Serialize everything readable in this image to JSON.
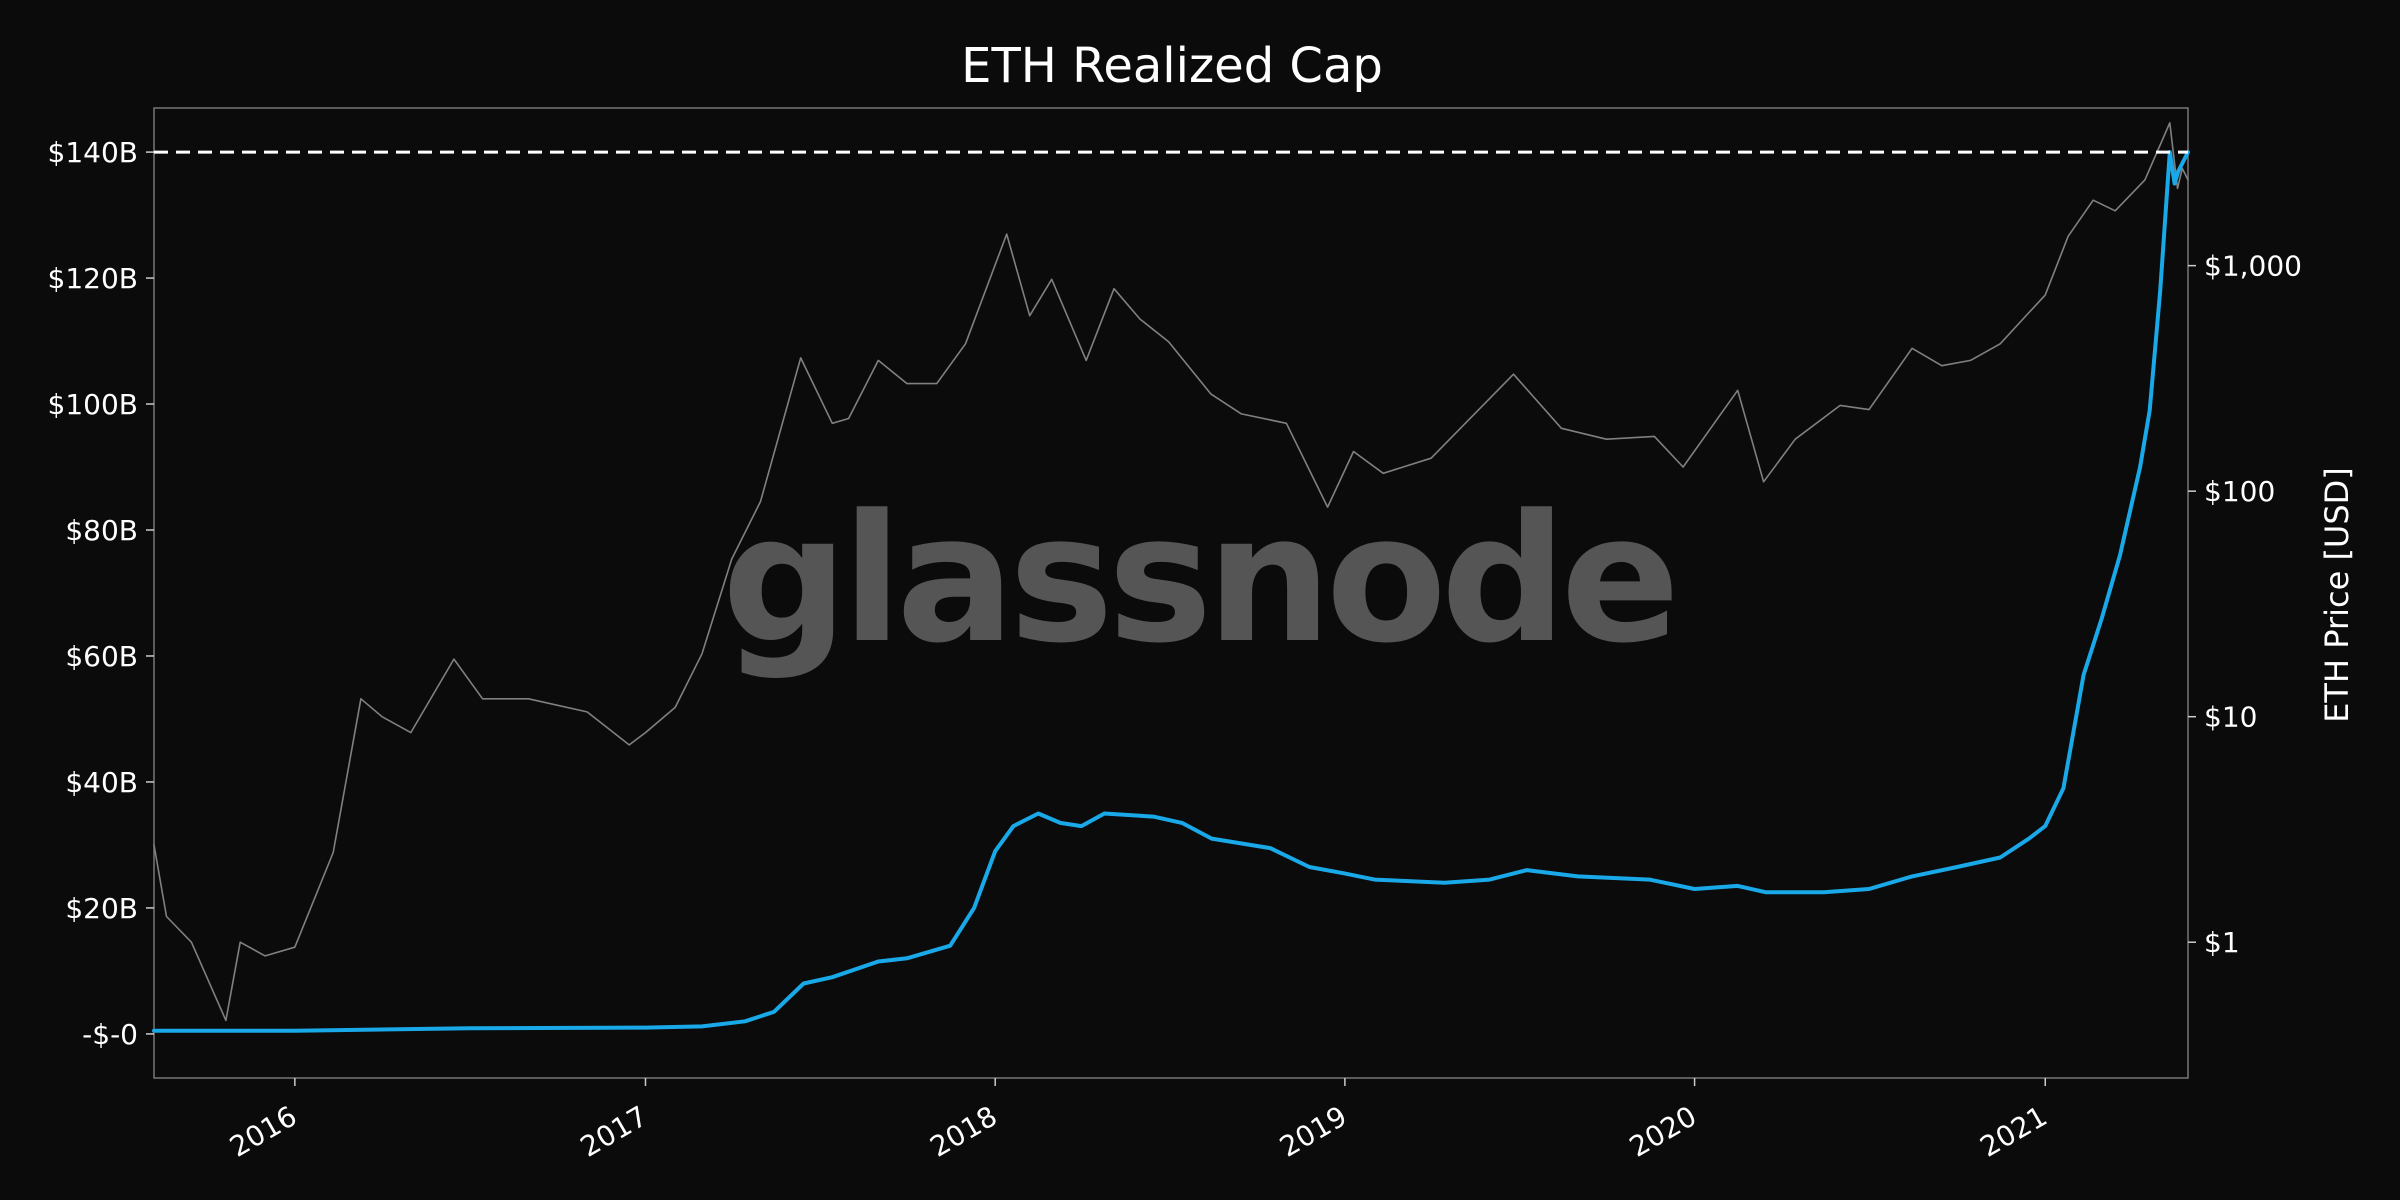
{
  "watermark": "glassnode",
  "chart_data": {
    "type": "line",
    "title": "ETH Realized Cap",
    "ylabel_left": "",
    "ylabel_right": "ETH Price [USD]",
    "left_axis": {
      "ylim": [
        -7,
        147
      ],
      "ticks": [
        0,
        20,
        40,
        60,
        80,
        100,
        120,
        140
      ],
      "tick_labels": [
        "-$-0",
        "$20B",
        "$40B",
        "$60B",
        "$80B",
        "$100B",
        "$120B",
        "$140B"
      ],
      "unit": "USD billions"
    },
    "right_axis": {
      "scale": "log",
      "ylim": [
        0.25,
        5000
      ],
      "ticks": [
        1,
        10,
        100,
        1000
      ],
      "tick_labels": [
        "$1",
        "$10",
        "$100",
        "$1,000"
      ]
    },
    "x_axis": {
      "xlim": [
        "2015-08-07",
        "2021-05-30"
      ],
      "ticks": [
        "2016-01-01",
        "2017-01-01",
        "2018-01-01",
        "2019-01-01",
        "2020-01-01",
        "2021-01-01"
      ],
      "tick_labels": [
        "2016",
        "2017",
        "2018",
        "2019",
        "2020",
        "2021"
      ]
    },
    "reference_line": {
      "axis": "left",
      "y": 140,
      "style": "dashed",
      "color": "#ffffff"
    },
    "grid": false,
    "legend": "none",
    "series": [
      {
        "axis": "left",
        "color": "#1aa9e8",
        "points": [
          [
            "2015-08-07",
            0.5
          ],
          [
            "2016-01-01",
            0.5
          ],
          [
            "2016-07-01",
            0.9
          ],
          [
            "2017-01-01",
            1.0
          ],
          [
            "2017-03-01",
            1.2
          ],
          [
            "2017-04-15",
            2.0
          ],
          [
            "2017-05-15",
            3.5
          ],
          [
            "2017-06-15",
            8.0
          ],
          [
            "2017-07-15",
            9.0
          ],
          [
            "2017-09-01",
            11.5
          ],
          [
            "2017-10-01",
            12.0
          ],
          [
            "2017-11-15",
            14.0
          ],
          [
            "2017-12-10",
            20.0
          ],
          [
            "2018-01-01",
            29.0
          ],
          [
            "2018-01-20",
            33.0
          ],
          [
            "2018-02-15",
            35.0
          ],
          [
            "2018-03-10",
            33.5
          ],
          [
            "2018-04-01",
            33.0
          ],
          [
            "2018-04-25",
            35.0
          ],
          [
            "2018-06-15",
            34.5
          ],
          [
            "2018-07-15",
            33.5
          ],
          [
            "2018-08-15",
            31.0
          ],
          [
            "2018-10-15",
            29.5
          ],
          [
            "2018-11-25",
            26.5
          ],
          [
            "2018-12-31",
            25.5
          ],
          [
            "2019-02-01",
            24.5
          ],
          [
            "2019-04-15",
            24.0
          ],
          [
            "2019-06-01",
            24.5
          ],
          [
            "2019-07-10",
            26.0
          ],
          [
            "2019-09-01",
            25.0
          ],
          [
            "2019-11-15",
            24.5
          ],
          [
            "2020-01-01",
            23.0
          ],
          [
            "2020-02-15",
            23.5
          ],
          [
            "2020-03-15",
            22.5
          ],
          [
            "2020-05-15",
            22.5
          ],
          [
            "2020-07-01",
            23.0
          ],
          [
            "2020-08-15",
            25.0
          ],
          [
            "2020-10-01",
            26.5
          ],
          [
            "2020-11-15",
            28.0
          ],
          [
            "2020-12-15",
            31.0
          ],
          [
            "2021-01-01",
            33.0
          ],
          [
            "2021-01-20",
            39.0
          ],
          [
            "2021-02-10",
            57.0
          ],
          [
            "2021-03-01",
            66.0
          ],
          [
            "2021-03-20",
            76.0
          ],
          [
            "2021-04-10",
            90.0
          ],
          [
            "2021-04-20",
            99.0
          ],
          [
            "2021-05-01",
            118.0
          ],
          [
            "2021-05-11",
            140.0
          ],
          [
            "2021-05-16",
            135.0
          ],
          [
            "2021-05-20",
            137.0
          ],
          [
            "2021-05-30",
            140.0
          ]
        ]
      },
      {
        "axis": "right",
        "color": "#808080",
        "points": [
          [
            "2015-08-07",
            2.7
          ],
          [
            "2015-08-20",
            1.3
          ],
          [
            "2015-09-15",
            1.0
          ],
          [
            "2015-10-21",
            0.45
          ],
          [
            "2015-11-05",
            1.0
          ],
          [
            "2015-12-01",
            0.87
          ],
          [
            "2016-01-01",
            0.95
          ],
          [
            "2016-02-10",
            2.5
          ],
          [
            "2016-03-10",
            12.0
          ],
          [
            "2016-04-01",
            10.0
          ],
          [
            "2016-05-01",
            8.5
          ],
          [
            "2016-06-15",
            18.0
          ],
          [
            "2016-07-15",
            12.0
          ],
          [
            "2016-09-01",
            12.0
          ],
          [
            "2016-11-01",
            10.5
          ],
          [
            "2016-12-15",
            7.5
          ],
          [
            "2017-01-01",
            8.5
          ],
          [
            "2017-02-01",
            11.0
          ],
          [
            "2017-03-01",
            19.0
          ],
          [
            "2017-04-01",
            50.0
          ],
          [
            "2017-05-01",
            90.0
          ],
          [
            "2017-06-12",
            390.0
          ],
          [
            "2017-07-15",
            200.0
          ],
          [
            "2017-08-01",
            210.0
          ],
          [
            "2017-09-01",
            380.0
          ],
          [
            "2017-10-01",
            300.0
          ],
          [
            "2017-11-01",
            300.0
          ],
          [
            "2017-12-01",
            450.0
          ],
          [
            "2018-01-13",
            1380.0
          ],
          [
            "2018-02-06",
            600.0
          ],
          [
            "2018-03-01",
            870.0
          ],
          [
            "2018-04-06",
            380.0
          ],
          [
            "2018-05-05",
            790.0
          ],
          [
            "2018-06-01",
            580.0
          ],
          [
            "2018-07-01",
            460.0
          ],
          [
            "2018-08-14",
            270.0
          ],
          [
            "2018-09-15",
            220.0
          ],
          [
            "2018-11-01",
            200.0
          ],
          [
            "2018-12-14",
            85.0
          ],
          [
            "2019-01-10",
            150.0
          ],
          [
            "2019-02-10",
            120.0
          ],
          [
            "2019-04-01",
            140.0
          ],
          [
            "2019-06-26",
            330.0
          ],
          [
            "2019-08-15",
            190.0
          ],
          [
            "2019-10-01",
            170.0
          ],
          [
            "2019-11-20",
            175.0
          ],
          [
            "2019-12-20",
            128.0
          ],
          [
            "2020-02-15",
            280.0
          ],
          [
            "2020-03-13",
            110.0
          ],
          [
            "2020-04-15",
            170.0
          ],
          [
            "2020-06-01",
            240.0
          ],
          [
            "2020-07-01",
            230.0
          ],
          [
            "2020-08-15",
            430.0
          ],
          [
            "2020-09-15",
            360.0
          ],
          [
            "2020-10-15",
            380.0
          ],
          [
            "2020-11-15",
            450.0
          ],
          [
            "2020-12-15",
            620.0
          ],
          [
            "2021-01-01",
            740.0
          ],
          [
            "2021-01-25",
            1350.0
          ],
          [
            "2021-02-20",
            1950.0
          ],
          [
            "2021-03-15",
            1750.0
          ],
          [
            "2021-04-15",
            2400.0
          ],
          [
            "2021-05-11",
            4300.0
          ],
          [
            "2021-05-19",
            2200.0
          ],
          [
            "2021-05-24",
            2700.0
          ],
          [
            "2021-05-30",
            2400.0
          ]
        ]
      }
    ]
  }
}
